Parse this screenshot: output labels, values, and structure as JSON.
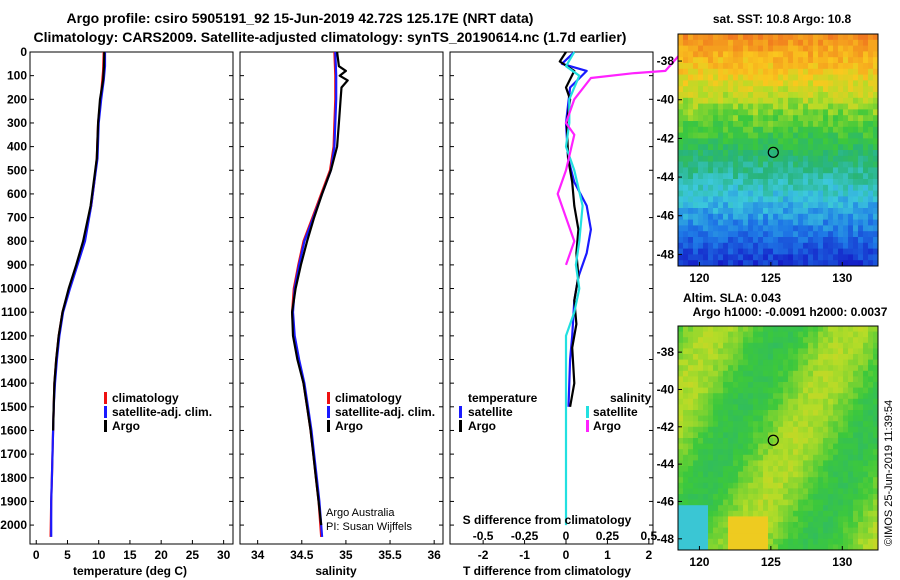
{
  "header": {
    "title_line1": "Argo profile: csiro 5905191_92 15-Jun-2019 42.72S 125.17E (NRT data)",
    "title_line2": "Climatology: CARS2009. Satellite-adjusted climatology: synTS_20190614.nc (1.7d earlier)"
  },
  "credit": {
    "line1": "Argo Australia",
    "line2": "PI: Susan Wijffels"
  },
  "stamp": "©IMOS 25-Jun-2019 11:39:54",
  "colors": {
    "climatology": "#ee1111",
    "satellite_adj": "#1a1aff",
    "argo": "#000000",
    "satellite_salinity": "#22e0e0",
    "argo_salinity": "#ff22ff"
  },
  "chart_data": [
    {
      "type": "line",
      "id": "temperature",
      "xlabel": "temperature (deg C)",
      "xticks": [
        "0",
        "5",
        "10",
        "15",
        "20",
        "25",
        "30"
      ],
      "xlim": [
        -1,
        31.5
      ],
      "ylim": [
        0,
        2080
      ],
      "yticks": [
        "0",
        "100",
        "200",
        "300",
        "400",
        "500",
        "600",
        "700",
        "800",
        "900",
        "1000",
        "1100",
        "1200",
        "1300",
        "1400",
        "1500",
        "1600",
        "1700",
        "1800",
        "1900",
        "2000"
      ],
      "legend": [
        "climatology",
        "satellite-adj. clim.",
        "Argo"
      ],
      "series": [
        {
          "name": "climatology",
          "color": "#ee1111",
          "points": [
            [
              10.8,
              0
            ],
            [
              10.7,
              80
            ],
            [
              10.3,
              200
            ],
            [
              9.9,
              300
            ],
            [
              9.7,
              450
            ],
            [
              9.3,
              550
            ],
            [
              8.8,
              650
            ],
            [
              7.6,
              800
            ],
            [
              6.5,
              900
            ],
            [
              5.3,
              1000
            ],
            [
              4.2,
              1100
            ],
            [
              3.6,
              1200
            ],
            [
              3.2,
              1300
            ],
            [
              2.9,
              1400
            ],
            [
              2.8,
              1500
            ],
            [
              2.7,
              1600
            ],
            [
              2.6,
              1700
            ],
            [
              2.5,
              1800
            ],
            [
              2.4,
              1900
            ],
            [
              2.3,
              2050
            ]
          ]
        },
        {
          "name": "satellite-adj. clim.",
          "color": "#1a1aff",
          "points": [
            [
              11.0,
              0
            ],
            [
              11.0,
              60
            ],
            [
              10.8,
              120
            ],
            [
              10.4,
              200
            ],
            [
              10.0,
              300
            ],
            [
              9.8,
              450
            ],
            [
              9.3,
              550
            ],
            [
              8.8,
              650
            ],
            [
              7.8,
              800
            ],
            [
              6.6,
              900
            ],
            [
              5.4,
              1000
            ],
            [
              4.3,
              1100
            ],
            [
              3.7,
              1200
            ],
            [
              3.3,
              1300
            ],
            [
              3.0,
              1400
            ],
            [
              2.8,
              1500
            ],
            [
              2.7,
              1600
            ],
            [
              2.6,
              1700
            ],
            [
              2.5,
              1800
            ],
            [
              2.4,
              1900
            ],
            [
              2.4,
              2050
            ]
          ]
        },
        {
          "name": "Argo",
          "color": "#000000",
          "points": [
            [
              10.9,
              0
            ],
            [
              10.85,
              60
            ],
            [
              10.7,
              120
            ],
            [
              10.2,
              200
            ],
            [
              9.9,
              300
            ],
            [
              9.7,
              450
            ],
            [
              9.2,
              550
            ],
            [
              8.7,
              650
            ],
            [
              7.5,
              800
            ],
            [
              6.4,
              900
            ],
            [
              5.2,
              1000
            ],
            [
              4.2,
              1100
            ],
            [
              3.6,
              1200
            ],
            [
              3.2,
              1300
            ],
            [
              2.9,
              1400
            ],
            [
              2.8,
              1500
            ],
            [
              2.7,
              1600
            ]
          ]
        }
      ]
    },
    {
      "type": "line",
      "id": "salinity",
      "xlabel": "salinity",
      "xticks": [
        "34",
        "34.5",
        "35",
        "35.5",
        "36"
      ],
      "xlim": [
        33.8,
        36.1
      ],
      "ylim": [
        0,
        2080
      ],
      "legend": [
        "climatology",
        "satellite-adj. clim.",
        "Argo"
      ],
      "series": [
        {
          "name": "climatology",
          "color": "#ee1111",
          "points": [
            [
              34.87,
              0
            ],
            [
              34.88,
              100
            ],
            [
              34.88,
              200
            ],
            [
              34.87,
              300
            ],
            [
              34.86,
              400
            ],
            [
              34.82,
              500
            ],
            [
              34.72,
              600
            ],
            [
              34.62,
              700
            ],
            [
              34.52,
              800
            ],
            [
              34.46,
              900
            ],
            [
              34.41,
              1000
            ],
            [
              34.39,
              1100
            ],
            [
              34.41,
              1200
            ],
            [
              34.46,
              1300
            ],
            [
              34.52,
              1400
            ],
            [
              34.56,
              1500
            ],
            [
              34.6,
              1600
            ],
            [
              34.63,
              1700
            ],
            [
              34.66,
              1800
            ],
            [
              34.69,
              1900
            ],
            [
              34.72,
              2050
            ]
          ]
        },
        {
          "name": "satellite-adj. clim.",
          "color": "#1a1aff",
          "points": [
            [
              34.88,
              0
            ],
            [
              34.89,
              100
            ],
            [
              34.89,
              200
            ],
            [
              34.88,
              300
            ],
            [
              34.87,
              400
            ],
            [
              34.83,
              500
            ],
            [
              34.73,
              600
            ],
            [
              34.63,
              700
            ],
            [
              34.53,
              800
            ],
            [
              34.47,
              900
            ],
            [
              34.42,
              1000
            ],
            [
              34.4,
              1100
            ],
            [
              34.42,
              1200
            ],
            [
              34.47,
              1300
            ],
            [
              34.53,
              1400
            ],
            [
              34.57,
              1500
            ],
            [
              34.61,
              1600
            ],
            [
              34.64,
              1700
            ],
            [
              34.67,
              1800
            ],
            [
              34.7,
              1900
            ],
            [
              34.73,
              2050
            ]
          ]
        },
        {
          "name": "Argo",
          "color": "#000000",
          "points": [
            [
              34.9,
              0
            ],
            [
              34.92,
              60
            ],
            [
              35.0,
              80
            ],
            [
              34.93,
              100
            ],
            [
              35.02,
              120
            ],
            [
              34.95,
              150
            ],
            [
              34.94,
              200
            ],
            [
              34.92,
              300
            ],
            [
              34.9,
              400
            ],
            [
              34.83,
              500
            ],
            [
              34.73,
              600
            ],
            [
              34.64,
              700
            ],
            [
              34.56,
              800
            ],
            [
              34.49,
              900
            ],
            [
              34.43,
              1000
            ],
            [
              34.39,
              1100
            ],
            [
              34.4,
              1200
            ],
            [
              34.45,
              1300
            ],
            [
              34.52,
              1400
            ],
            [
              34.56,
              1500
            ],
            [
              34.6,
              1600
            ],
            [
              34.63,
              1700
            ],
            [
              34.66,
              1800
            ],
            [
              34.69,
              1900
            ],
            [
              34.72,
              2000
            ]
          ]
        }
      ]
    },
    {
      "type": "line",
      "id": "difference",
      "xlabel": "T difference from climatology",
      "xlabel2": "S difference from climatology",
      "xticks": [
        "-2",
        "-1",
        "0",
        "1",
        "2"
      ],
      "xticks2": [
        "-0.5",
        "-0.25",
        "0",
        "0.25",
        "0.5"
      ],
      "xlim": [
        -2.8,
        2.1
      ],
      "ylim": [
        0,
        2080
      ],
      "legend_title_t": "temperature",
      "legend_title_s": "salinity",
      "legend_t": [
        "satellite",
        "Argo"
      ],
      "legend_s": [
        "satellite",
        "Argo"
      ],
      "series": [
        {
          "name": "T satellite",
          "color": "#1a1aff",
          "points": [
            [
              0.2,
              0
            ],
            [
              -0.1,
              50
            ],
            [
              0.5,
              80
            ],
            [
              0.1,
              150
            ],
            [
              0.0,
              300
            ],
            [
              0.05,
              450
            ],
            [
              0.2,
              550
            ],
            [
              0.5,
              650
            ],
            [
              0.6,
              750
            ],
            [
              0.5,
              850
            ],
            [
              0.3,
              950
            ],
            [
              0.2,
              1050
            ],
            [
              0.15,
              1200
            ],
            [
              0.1,
              1300
            ],
            [
              0.08,
              1400
            ],
            [
              0.06,
              1500
            ]
          ]
        },
        {
          "name": "T Argo",
          "color": "#000000",
          "points": [
            [
              0.0,
              0
            ],
            [
              -0.15,
              40
            ],
            [
              0.2,
              80
            ],
            [
              0.0,
              150
            ],
            [
              0.1,
              200
            ],
            [
              0.02,
              300
            ],
            [
              0.05,
              450
            ],
            [
              0.15,
              550
            ],
            [
              0.2,
              650
            ],
            [
              0.3,
              750
            ],
            [
              0.25,
              850
            ],
            [
              0.3,
              950
            ],
            [
              0.2,
              1050
            ],
            [
              0.25,
              1150
            ],
            [
              0.15,
              1250
            ],
            [
              0.2,
              1400
            ],
            [
              0.1,
              1500
            ]
          ]
        },
        {
          "name": "S satellite",
          "color": "#22e0e0",
          "points": [
            [
              0.05,
              0
            ],
            [
              0.0,
              60
            ],
            [
              0.08,
              100
            ],
            [
              0.02,
              200
            ],
            [
              0.02,
              300
            ],
            [
              0.0,
              400
            ],
            [
              0.05,
              500
            ],
            [
              0.1,
              650
            ],
            [
              0.08,
              800
            ],
            [
              0.06,
              900
            ],
            [
              0.08,
              1000
            ],
            [
              0.05,
              1100
            ],
            [
              0.0,
              1200
            ],
            [
              0.0,
              1300
            ],
            [
              0.0,
              1500
            ],
            [
              0.0,
              1700
            ],
            [
              0.0,
              2000
            ]
          ]
        },
        {
          "name": "S Argo",
          "color": "#ff22ff",
          "points": [
            [
              0.7,
              0
            ],
            [
              0.6,
              80
            ],
            [
              0.4,
              90
            ],
            [
              0.15,
              110
            ],
            [
              0.05,
              200
            ],
            [
              0.0,
              300
            ],
            [
              0.05,
              350
            ],
            [
              0.0,
              500
            ],
            [
              -0.05,
              600
            ],
            [
              0.0,
              700
            ],
            [
              0.05,
              800
            ],
            [
              0.0,
              900
            ]
          ]
        }
      ]
    },
    {
      "type": "heatmap",
      "id": "sst_map",
      "title": "sat. SST: 10.8 Argo: 10.8",
      "xticks": [
        "120",
        "125",
        "130"
      ],
      "yticks": [
        "-38",
        "-40",
        "-42",
        "-44",
        "-46",
        "-48"
      ],
      "xlim": [
        118.5,
        132.5
      ],
      "ylim": [
        -48.6,
        -36.6
      ],
      "marker": [
        125.17,
        -42.72
      ]
    },
    {
      "type": "heatmap",
      "id": "sla_map",
      "title_line1": "Altim. SLA: 0.043",
      "title_line2": "Argo h1000: -0.0091 h2000: 0.0037",
      "xticks": [
        "120",
        "125",
        "130"
      ],
      "yticks": [
        "-38",
        "-40",
        "-42",
        "-44",
        "-46",
        "-48"
      ],
      "xlim": [
        118.5,
        132.5
      ],
      "ylim": [
        -48.6,
        -36.6
      ],
      "marker": [
        125.17,
        -42.72
      ]
    }
  ]
}
